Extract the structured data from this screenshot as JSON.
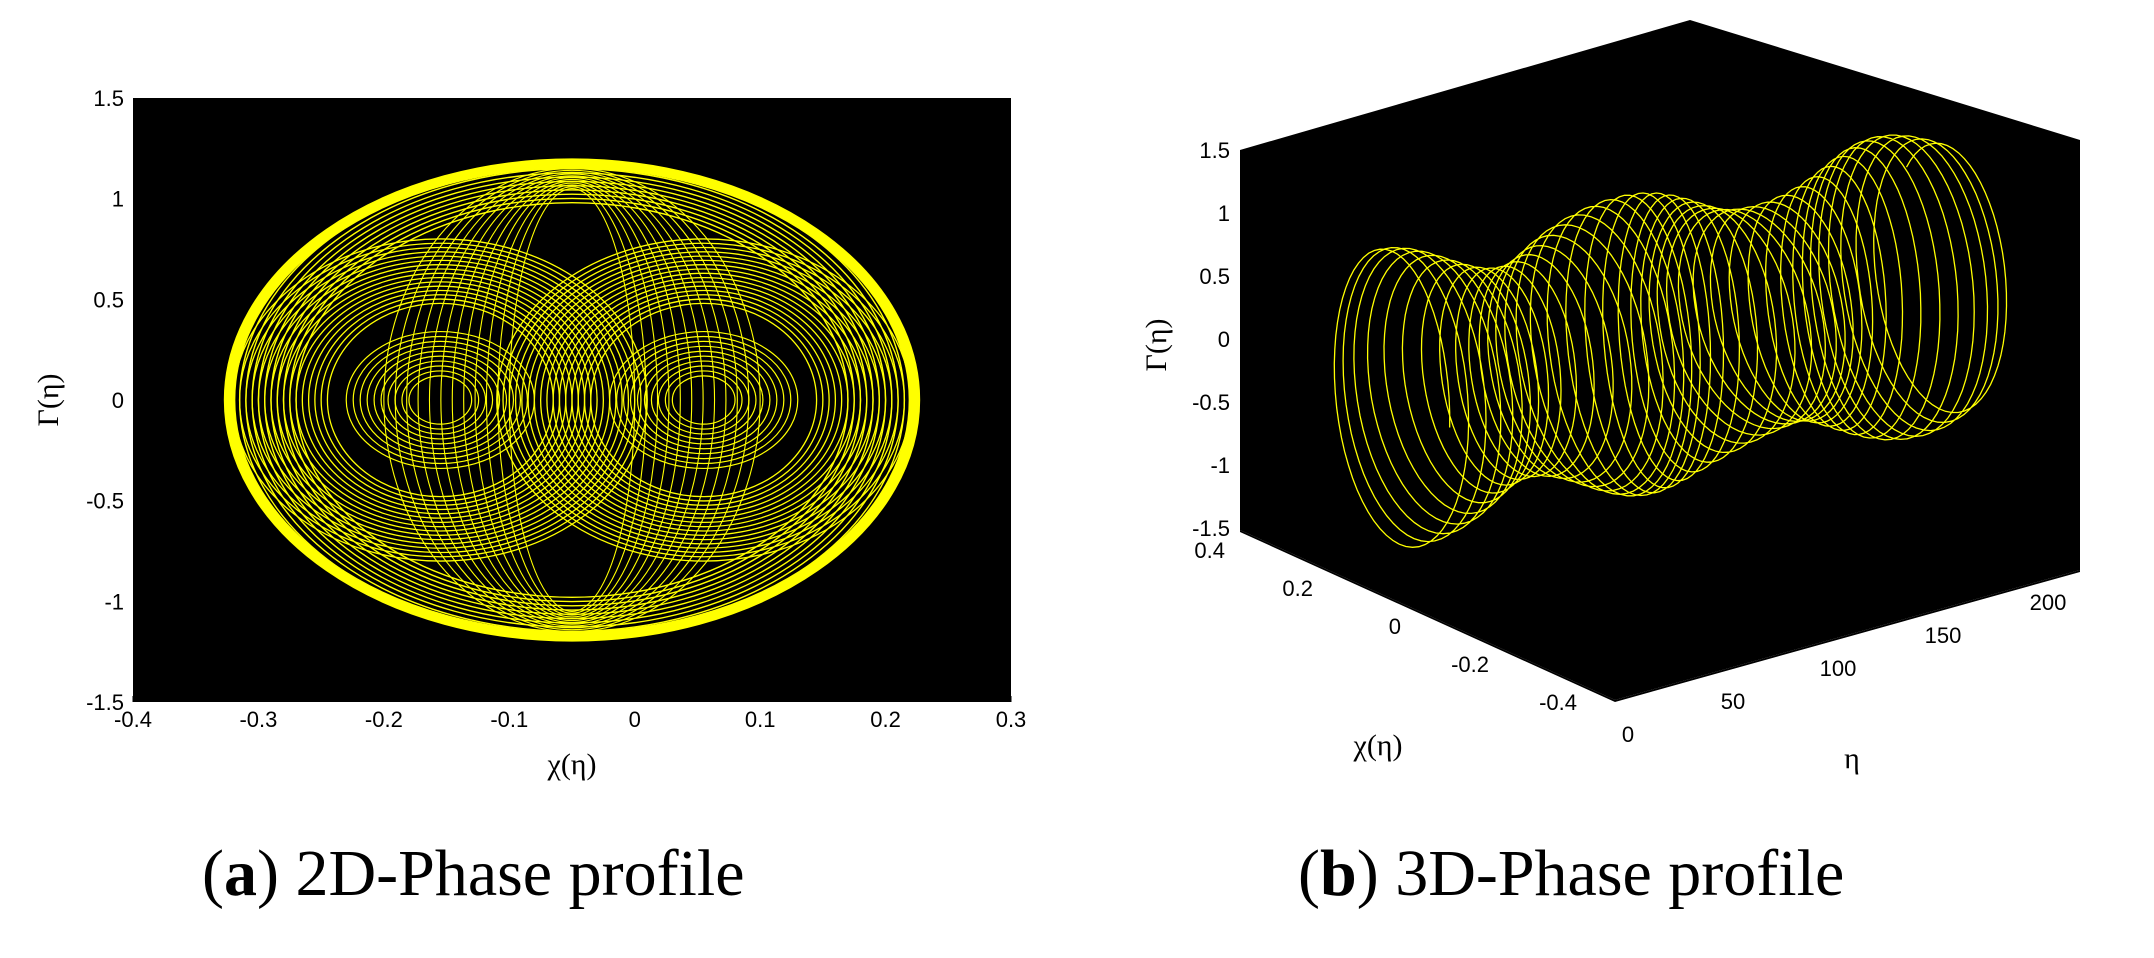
{
  "colors": {
    "background": "#000000",
    "trace": "#ffff00",
    "page": "#ffffff"
  },
  "chart_data": [
    {
      "type": "line",
      "panel_label": "a",
      "caption": "2D-Phase profile",
      "xlabel": "χ(η)",
      "ylabel": "Γ(η)",
      "xlim": [
        -0.4,
        0.3
      ],
      "ylim": [
        -1.5,
        1.5
      ],
      "xticks": [
        "-0.4",
        "-0.3",
        "-0.2",
        "-0.1",
        "0",
        "0.1",
        "0.2",
        "0.3"
      ],
      "yticks": [
        "1.5",
        "1",
        "0.5",
        "0",
        "-0.5",
        "-1",
        "-1.5"
      ],
      "grid": false,
      "series": [
        {
          "orbit": "outer",
          "x": [
            -0.27,
            -0.19,
            0.0,
            0.19,
            0.27,
            0.19,
            0.0,
            -0.19,
            -0.27
          ],
          "y": [
            0.0,
            0.87,
            1.18,
            0.87,
            0.0,
            -0.87,
            -1.18,
            -0.87,
            0.0
          ]
        },
        {
          "orbit": "left-ring",
          "x": [
            -0.21,
            -0.14,
            -0.02,
            0.06,
            -0.02,
            -0.14,
            -0.21
          ],
          "y": [
            0.0,
            0.62,
            0.75,
            0.0,
            -0.75,
            -0.62,
            0.0
          ]
        },
        {
          "orbit": "right-ring",
          "x": [
            0.21,
            0.14,
            0.02,
            -0.06,
            0.02,
            0.14,
            0.21
          ],
          "y": [
            0.0,
            0.62,
            0.75,
            0.0,
            -0.75,
            -0.62,
            0.0
          ]
        },
        {
          "orbit": "left-core",
          "x": [
            -0.16,
            -0.1,
            -0.05,
            -0.1,
            -0.16
          ],
          "y": [
            0.0,
            0.32,
            0.0,
            -0.32,
            0.0
          ]
        },
        {
          "orbit": "right-core",
          "x": [
            0.16,
            0.1,
            0.05,
            0.1,
            0.16
          ],
          "y": [
            0.0,
            0.32,
            0.0,
            -0.32,
            0.0
          ]
        }
      ]
    },
    {
      "type": "line",
      "panel_label": "b",
      "caption": "3D-Phase profile",
      "xlabel": "χ(η)",
      "ylabel": "η",
      "zlabel": "Γ(η)",
      "xlim": [
        -0.4,
        0.4
      ],
      "ylim": [
        0,
        200
      ],
      "zlim": [
        -1.5,
        1.5
      ],
      "xticks": [
        "0.4",
        "0.2",
        "0",
        "-0.2",
        "-0.4"
      ],
      "yticks": [
        "0",
        "50",
        "100",
        "150",
        "200"
      ],
      "zticks": [
        "1.5",
        "1",
        "0.5",
        "0",
        "-0.5",
        "-1",
        "-1.5"
      ],
      "grid": false,
      "series": [
        {
          "description_source": "trajectory",
          "eta_range": [
            0,
            200
          ],
          "chi_amplitude": 0.27,
          "gamma_amplitude": 1.18
        }
      ]
    }
  ]
}
